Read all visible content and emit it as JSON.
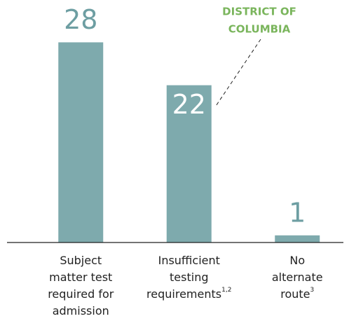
{
  "chart_data": {
    "type": "bar",
    "categories": [
      [
        "Subject",
        "matter test",
        "required for",
        "admission"
      ],
      [
        "Insufficient",
        "testing",
        "requirements"
      ],
      [
        "No",
        "alternate",
        "route"
      ]
    ],
    "category_notes": [
      null,
      "1,2",
      "3"
    ],
    "values": [
      28,
      22,
      1
    ],
    "value_label_position": [
      "above",
      "inside",
      "above"
    ],
    "color": "#7eaaad",
    "label_color": "#6d9ea2",
    "ylim": [
      0,
      30
    ],
    "annotation": {
      "lines": [
        "DISTRICT OF",
        "COLUMBIA"
      ],
      "color": "#7ab55c",
      "target": 1
    }
  }
}
